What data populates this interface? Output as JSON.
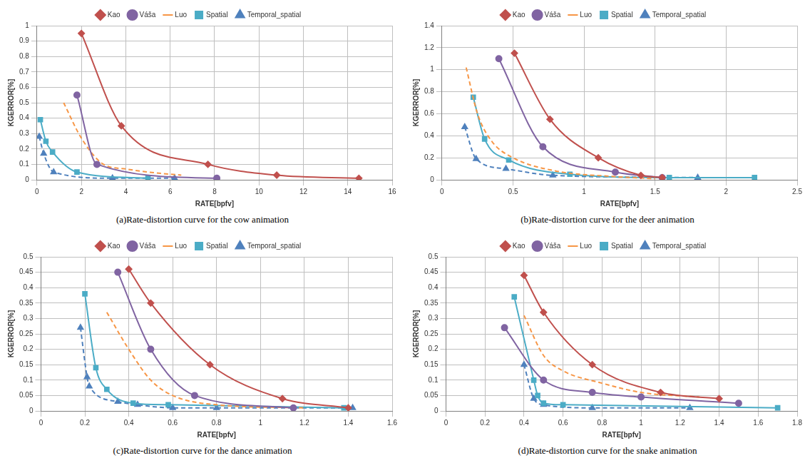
{
  "chart_data": [
    {
      "type": "line",
      "title": "(a)Rate-distortion curve for the cow animation",
      "x_label": "RATE[bpfv]",
      "y_label": "KGERROR[%]",
      "xlim": [
        0,
        16
      ],
      "xticks": [
        0,
        2,
        4,
        6,
        8,
        10,
        12,
        14,
        16
      ],
      "ylim": [
        0,
        1
      ],
      "yticks": [
        0,
        0.1,
        0.2,
        0.3,
        0.4,
        0.5,
        0.6,
        0.7,
        0.8,
        0.9,
        1
      ],
      "grid": true,
      "legend": "top",
      "series": [
        {
          "name": "Kao",
          "color": "#c0504d",
          "marker": "diamond",
          "line_style": "solid",
          "x": [
            2,
            3.8,
            7.7,
            10.8,
            14.5
          ],
          "values": [
            0.95,
            0.35,
            0.1,
            0.03,
            0.01
          ]
        },
        {
          "name": "Váša",
          "color": "#8064a2",
          "marker": "circle",
          "line_style": "solid",
          "x": [
            1.8,
            2.7,
            8.1
          ],
          "values": [
            0.55,
            0.1,
            0.01
          ]
        },
        {
          "name": "Luo",
          "color": "#f79646",
          "marker": "none",
          "line_style": "dashed",
          "x": [
            1.2,
            2,
            3,
            4,
            5,
            6.5
          ],
          "values": [
            0.5,
            0.27,
            0.1,
            0.07,
            0.05,
            0.03
          ]
        },
        {
          "name": "Spatial",
          "color": "#4bacc6",
          "marker": "square",
          "line_style": "solid",
          "x": [
            0.15,
            0.4,
            0.7,
            1.8,
            5
          ],
          "values": [
            0.39,
            0.25,
            0.18,
            0.05,
            0.01
          ]
        },
        {
          "name": "Temporal_spatial",
          "color": "#4f81bd",
          "marker": "triangle",
          "line_style": "dashed",
          "x": [
            0.1,
            0.3,
            0.75,
            3.4,
            6.2
          ],
          "values": [
            0.28,
            0.17,
            0.05,
            0.01,
            0.01
          ]
        }
      ]
    },
    {
      "type": "line",
      "title": "(b)Rate-distortion curve for the deer animation",
      "x_label": "RATE[bpfv]",
      "y_label": "KGERROR[%]",
      "xlim": [
        0,
        2.5
      ],
      "xticks": [
        0,
        0.5,
        1,
        1.5,
        2,
        2.5
      ],
      "ylim": [
        0,
        1.4
      ],
      "yticks": [
        0,
        0.2,
        0.4,
        0.6,
        0.8,
        1,
        1.2,
        1.4
      ],
      "grid": true,
      "legend": "top",
      "series": [
        {
          "name": "Kao",
          "color": "#c0504d",
          "marker": "diamond",
          "line_style": "solid",
          "x": [
            0.51,
            0.76,
            1.1,
            1.4,
            1.55
          ],
          "values": [
            1.15,
            0.55,
            0.2,
            0.04,
            0.02
          ]
        },
        {
          "name": "Váša",
          "color": "#8064a2",
          "marker": "circle",
          "line_style": "solid",
          "x": [
            0.4,
            0.71,
            1.22,
            1.55
          ],
          "values": [
            1.1,
            0.3,
            0.07,
            0.02
          ]
        },
        {
          "name": "Luo",
          "color": "#f79646",
          "marker": "none",
          "line_style": "dashed",
          "x": [
            0.17,
            0.25,
            0.35,
            0.5,
            0.8,
            1.2,
            1.5
          ],
          "values": [
            1.02,
            0.6,
            0.35,
            0.2,
            0.08,
            0.03,
            0.01
          ]
        },
        {
          "name": "Spatial",
          "color": "#4bacc6",
          "marker": "square",
          "line_style": "solid",
          "x": [
            0.22,
            0.3,
            0.47,
            0.9,
            1.6,
            2.2
          ],
          "values": [
            0.75,
            0.37,
            0.18,
            0.05,
            0.02,
            0.02
          ]
        },
        {
          "name": "Temporal_spatial",
          "color": "#4f81bd",
          "marker": "triangle",
          "line_style": "dashed",
          "x": [
            0.16,
            0.24,
            0.45,
            0.78,
            1.8
          ],
          "values": [
            0.48,
            0.19,
            0.1,
            0.04,
            0.02
          ]
        }
      ]
    },
    {
      "type": "line",
      "title": "(c)Rate-distortion curve for the dance animation",
      "x_label": "RATE[bpfv]",
      "y_label": "KGERROR[%]",
      "xlim": [
        0,
        1.6
      ],
      "xticks": [
        0,
        0.2,
        0.4,
        0.6,
        0.8,
        1,
        1.2,
        1.4,
        1.6
      ],
      "ylim": [
        0,
        0.5
      ],
      "yticks": [
        0,
        0.05,
        0.1,
        0.15,
        0.2,
        0.25,
        0.3,
        0.35,
        0.4,
        0.45,
        0.5
      ],
      "grid": true,
      "legend": "top",
      "series": [
        {
          "name": "Kao",
          "color": "#c0504d",
          "marker": "diamond",
          "line_style": "solid",
          "x": [
            0.4,
            0.5,
            0.77,
            1.1,
            1.4
          ],
          "values": [
            0.46,
            0.35,
            0.15,
            0.04,
            0.01
          ]
        },
        {
          "name": "Váša",
          "color": "#8064a2",
          "marker": "circle",
          "line_style": "solid",
          "x": [
            0.35,
            0.5,
            0.7,
            1.15
          ],
          "values": [
            0.45,
            0.2,
            0.05,
            0.01
          ]
        },
        {
          "name": "Luo",
          "color": "#f79646",
          "marker": "none",
          "line_style": "dashed",
          "x": [
            0.3,
            0.4,
            0.5,
            0.6,
            0.8,
            1.2
          ],
          "values": [
            0.32,
            0.2,
            0.1,
            0.05,
            0.02,
            0.01
          ]
        },
        {
          "name": "Spatial",
          "color": "#4bacc6",
          "marker": "square",
          "line_style": "solid",
          "x": [
            0.2,
            0.25,
            0.3,
            0.42,
            0.58,
            1.38
          ],
          "values": [
            0.38,
            0.14,
            0.07,
            0.025,
            0.02,
            0.01
          ]
        },
        {
          "name": "Temporal_spatial",
          "color": "#4f81bd",
          "marker": "triangle",
          "line_style": "dashed",
          "x": [
            0.18,
            0.21,
            0.22,
            0.35,
            0.44,
            0.6,
            0.8,
            1.42
          ],
          "values": [
            0.27,
            0.11,
            0.08,
            0.03,
            0.02,
            0.01,
            0.01,
            0.01
          ]
        }
      ]
    },
    {
      "type": "line",
      "title": "(d)Rate-distortion curve for the snake animation",
      "x_label": "RATE[bpfv]",
      "y_label": "KGERROR[%]",
      "xlim": [
        0,
        1.8
      ],
      "xticks": [
        0,
        0.2,
        0.4,
        0.6,
        0.8,
        1,
        1.2,
        1.4,
        1.6,
        1.8
      ],
      "ylim": [
        0,
        0.5
      ],
      "yticks": [
        0,
        0.05,
        0.1,
        0.15,
        0.2,
        0.25,
        0.3,
        0.35,
        0.4,
        0.45,
        0.5
      ],
      "grid": true,
      "legend": "top",
      "series": [
        {
          "name": "Kao",
          "color": "#c0504d",
          "marker": "diamond",
          "line_style": "solid",
          "x": [
            0.4,
            0.5,
            0.75,
            1.1,
            1.4
          ],
          "values": [
            0.44,
            0.32,
            0.15,
            0.06,
            0.04
          ]
        },
        {
          "name": "Váša",
          "color": "#8064a2",
          "marker": "circle",
          "line_style": "solid",
          "x": [
            0.3,
            0.5,
            0.75,
            1,
            1.5
          ],
          "values": [
            0.27,
            0.1,
            0.06,
            0.045,
            0.025
          ]
        },
        {
          "name": "Luo",
          "color": "#f79646",
          "marker": "none",
          "line_style": "dashed",
          "x": [
            0.4,
            0.5,
            0.6,
            0.8,
            1,
            1.3
          ],
          "values": [
            0.31,
            0.18,
            0.13,
            0.09,
            0.06,
            0.045
          ]
        },
        {
          "name": "Spatial",
          "color": "#4bacc6",
          "marker": "square",
          "line_style": "solid",
          "x": [
            0.35,
            0.45,
            0.47,
            0.5,
            0.6,
            1.7
          ],
          "values": [
            0.37,
            0.1,
            0.05,
            0.025,
            0.02,
            0.01
          ]
        },
        {
          "name": "Temporal_spatial",
          "color": "#4f81bd",
          "marker": "triangle",
          "line_style": "dashed",
          "x": [
            0.4,
            0.45,
            0.5,
            0.75,
            1.25
          ],
          "values": [
            0.15,
            0.04,
            0.02,
            0.01,
            0.01
          ]
        }
      ]
    }
  ]
}
